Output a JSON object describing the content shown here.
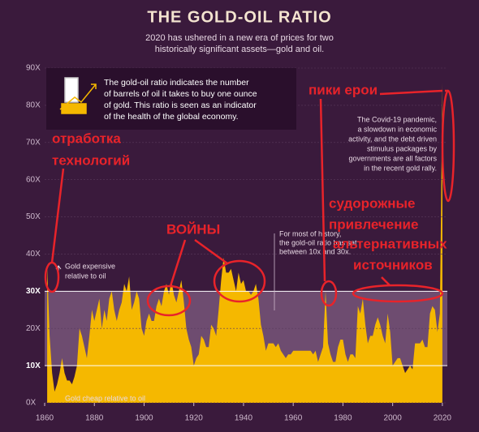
{
  "chart_data": {
    "type": "area",
    "title": "THE GOLD-OIL RATIO",
    "subtitle": [
      "2020 has ushered in a new era of prices for two",
      "historically significant assets—gold and oil."
    ],
    "info": [
      "The gold-oil ratio indicates the number",
      "of barrels of oil it takes to buy one ounce",
      "of gold. This ratio is seen as an indicator",
      "of the health of the global economy."
    ],
    "annotations": {
      "expensive": [
        "Gold expensive",
        "relative to oil"
      ],
      "cheap": "Gold cheap relative to oil",
      "history": [
        "For most of history,",
        "the gold-oil ratio has sat",
        "between 10x and 30x."
      ],
      "covid": [
        "The Covid-19 pandemic,",
        "a slowdown in economic",
        "activity, and the debt driven",
        "stimulus packages by",
        "governments are all factors",
        "in the recent gold rally."
      ]
    },
    "handwritten": {
      "tech": [
        "отработка",
        "технологий"
      ],
      "wars": "ВОЙНЫ",
      "peaks": "пики ерои",
      "alt": [
        "судорожные",
        "привлечение",
        "альтернативных",
        "источников"
      ]
    },
    "x": [
      1861,
      1862,
      1863,
      1864,
      1865,
      1866,
      1867,
      1868,
      1869,
      1870,
      1871,
      1872,
      1873,
      1874,
      1875,
      1876,
      1877,
      1878,
      1879,
      1880,
      1881,
      1882,
      1883,
      1884,
      1885,
      1886,
      1887,
      1888,
      1889,
      1890,
      1891,
      1892,
      1893,
      1894,
      1895,
      1896,
      1897,
      1898,
      1899,
      1900,
      1901,
      1902,
      1903,
      1904,
      1905,
      1906,
      1907,
      1908,
      1909,
      1910,
      1911,
      1912,
      1913,
      1914,
      1915,
      1916,
      1917,
      1918,
      1919,
      1920,
      1921,
      1922,
      1923,
      1924,
      1925,
      1926,
      1927,
      1928,
      1929,
      1930,
      1931,
      1932,
      1933,
      1934,
      1935,
      1936,
      1937,
      1938,
      1939,
      1940,
      1941,
      1942,
      1943,
      1944,
      1945,
      1946,
      1947,
      1948,
      1949,
      1950,
      1951,
      1952,
      1953,
      1954,
      1955,
      1956,
      1957,
      1958,
      1959,
      1960,
      1961,
      1962,
      1963,
      1964,
      1965,
      1966,
      1967,
      1968,
      1969,
      1970,
      1971,
      1972,
      1973,
      1974,
      1975,
      1976,
      1977,
      1978,
      1979,
      1980,
      1981,
      1982,
      1983,
      1984,
      1985,
      1986,
      1987,
      1988,
      1989,
      1990,
      1991,
      1992,
      1993,
      1994,
      1995,
      1996,
      1997,
      1998,
      1999,
      2000,
      2001,
      2002,
      2003,
      2004,
      2005,
      2006,
      2007,
      2008,
      2009,
      2010,
      2011,
      2012,
      2013,
      2014,
      2015,
      2016,
      2017,
      2018,
      2019,
      2020
    ],
    "values": [
      37,
      18,
      8,
      3,
      5,
      8,
      12,
      8,
      6,
      6,
      5,
      7,
      10,
      20,
      18,
      15,
      12,
      18,
      25,
      22,
      25,
      28,
      20,
      25,
      22,
      28,
      30,
      25,
      22,
      25,
      27,
      32,
      30,
      34,
      25,
      27,
      30,
      28,
      20,
      18,
      22,
      24,
      22,
      22,
      26,
      28,
      26,
      30,
      32,
      29,
      33,
      29,
      27,
      30,
      33,
      27,
      20,
      17,
      15,
      10,
      12,
      13,
      18,
      17,
      15,
      15,
      21,
      20,
      18,
      25,
      33,
      39,
      35,
      35,
      36,
      33,
      30,
      35,
      32,
      33,
      30,
      30,
      29,
      30,
      32,
      28,
      21,
      18,
      14,
      16,
      16,
      16,
      15,
      16,
      14,
      13,
      12,
      13,
      13,
      14,
      14,
      14,
      14,
      14,
      14,
      14,
      14,
      13,
      14,
      11,
      13,
      15,
      30,
      16,
      13,
      11,
      11,
      15,
      17,
      17,
      13,
      11,
      13,
      13,
      12,
      26,
      24,
      28,
      21,
      16,
      18,
      18,
      21,
      23,
      21,
      18,
      16,
      24,
      19,
      10,
      11,
      12,
      12,
      10,
      8,
      9,
      10,
      9,
      16,
      16,
      16,
      17,
      15,
      15,
      24,
      26,
      25,
      19,
      24,
      86
    ],
    "color": "#f5b800",
    "xlim": [
      1860,
      2022
    ],
    "xticks": [
      1860,
      1880,
      1900,
      1920,
      1940,
      1960,
      1980,
      2000,
      2020
    ],
    "ylim": [
      0,
      90
    ],
    "yticks": [
      {
        "value": 0,
        "label": "0X"
      },
      {
        "value": 10,
        "label": "10X"
      },
      {
        "value": 20,
        "label": "20X"
      },
      {
        "value": 30,
        "label": "30X"
      },
      {
        "value": 40,
        "label": "40X"
      },
      {
        "value": 50,
        "label": "50X"
      },
      {
        "value": 60,
        "label": "60X"
      },
      {
        "value": 70,
        "label": "70X"
      },
      {
        "value": 80,
        "label": "80X"
      },
      {
        "value": 90,
        "label": "90X"
      }
    ],
    "band": [
      10,
      30
    ]
  }
}
